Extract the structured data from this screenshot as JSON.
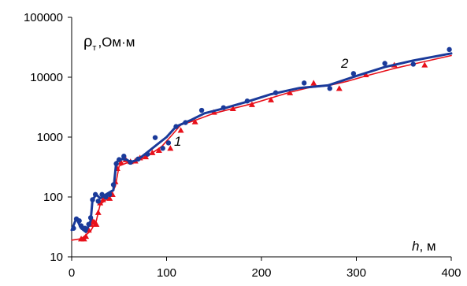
{
  "chart_data": {
    "type": "scatter",
    "xlabel": {
      "var": "h",
      "unit": ", м"
    },
    "ylabel": {
      "main": "ρ",
      "sub": "т",
      "unit": ",Ом·м"
    },
    "xlim": [
      0,
      400
    ],
    "ylim": [
      10,
      100000
    ],
    "yscale": "log",
    "grid": false,
    "x_ticks": [
      0,
      100,
      200,
      300,
      400
    ],
    "x_tick_labels": [
      "0",
      "100",
      "200",
      "300",
      "400"
    ],
    "y_ticks": [
      10,
      100,
      1000,
      10000,
      100000
    ],
    "y_tick_labels": [
      "10",
      "100",
      "1000",
      "10000",
      "100000"
    ],
    "series": [
      {
        "name": "1",
        "color": "#e8101a",
        "marker": "triangle",
        "points": [
          [
            10,
            20
          ],
          [
            13,
            20
          ],
          [
            15,
            22
          ],
          [
            18,
            28
          ],
          [
            20,
            35
          ],
          [
            22,
            40
          ],
          [
            24,
            38
          ],
          [
            26,
            35
          ],
          [
            28,
            55
          ],
          [
            30,
            80
          ],
          [
            33,
            90
          ],
          [
            36,
            100
          ],
          [
            40,
            95
          ],
          [
            43,
            110
          ],
          [
            46,
            180
          ],
          [
            48,
            300
          ],
          [
            52,
            380
          ],
          [
            57,
            420
          ],
          [
            62,
            390
          ],
          [
            67,
            400
          ],
          [
            72,
            450
          ],
          [
            78,
            470
          ],
          [
            85,
            550
          ],
          [
            92,
            600
          ],
          [
            104,
            650
          ],
          [
            115,
            1300
          ],
          [
            130,
            1800
          ],
          [
            150,
            2600
          ],
          [
            170,
            3000
          ],
          [
            190,
            3500
          ],
          [
            210,
            4200
          ],
          [
            230,
            5500
          ],
          [
            255,
            8000
          ],
          [
            282,
            6500
          ],
          [
            310,
            11000
          ],
          [
            340,
            16000
          ],
          [
            372,
            16000
          ]
        ],
        "curve": [
          [
            0,
            19
          ],
          [
            10,
            20
          ],
          [
            20,
            27
          ],
          [
            26,
            40
          ],
          [
            30,
            75
          ],
          [
            40,
            100
          ],
          [
            46,
            150
          ],
          [
            50,
            330
          ],
          [
            60,
            380
          ],
          [
            70,
            420
          ],
          [
            80,
            480
          ],
          [
            95,
            700
          ],
          [
            105,
            1050
          ],
          [
            115,
            1600
          ],
          [
            130,
            1900
          ],
          [
            150,
            2500
          ],
          [
            170,
            3000
          ],
          [
            190,
            3600
          ],
          [
            210,
            4500
          ],
          [
            230,
            5600
          ],
          [
            250,
            6700
          ],
          [
            270,
            7200
          ],
          [
            290,
            8500
          ],
          [
            310,
            10500
          ],
          [
            340,
            14000
          ],
          [
            370,
            18000
          ],
          [
            400,
            23000
          ]
        ]
      },
      {
        "name": "2",
        "color": "#1a3a9a",
        "marker": "circle",
        "points": [
          [
            2,
            30
          ],
          [
            5,
            43
          ],
          [
            8,
            40
          ],
          [
            10,
            33
          ],
          [
            14,
            30
          ],
          [
            18,
            35
          ],
          [
            20,
            45
          ],
          [
            22,
            90
          ],
          [
            25,
            110
          ],
          [
            28,
            85
          ],
          [
            32,
            110
          ],
          [
            36,
            100
          ],
          [
            40,
            110
          ],
          [
            44,
            160
          ],
          [
            47,
            360
          ],
          [
            50,
            420
          ],
          [
            55,
            480
          ],
          [
            62,
            380
          ],
          [
            70,
            430
          ],
          [
            80,
            520
          ],
          [
            88,
            980
          ],
          [
            96,
            650
          ],
          [
            102,
            800
          ],
          [
            110,
            1500
          ],
          [
            120,
            1750
          ],
          [
            137,
            2800
          ],
          [
            160,
            3100
          ],
          [
            185,
            4000
          ],
          [
            215,
            5500
          ],
          [
            245,
            8000
          ],
          [
            272,
            6500
          ],
          [
            297,
            11500
          ],
          [
            330,
            17000
          ],
          [
            360,
            16500
          ],
          [
            398,
            29000
          ]
        ],
        "curve": [
          [
            0,
            28
          ],
          [
            5,
            44
          ],
          [
            10,
            30
          ],
          [
            15,
            26
          ],
          [
            20,
            40
          ],
          [
            22,
            90
          ],
          [
            26,
            110
          ],
          [
            30,
            95
          ],
          [
            36,
            110
          ],
          [
            40,
            120
          ],
          [
            44,
            130
          ],
          [
            47,
            380
          ],
          [
            52,
            430
          ],
          [
            58,
            420
          ],
          [
            62,
            380
          ],
          [
            70,
            420
          ],
          [
            80,
            560
          ],
          [
            90,
            750
          ],
          [
            100,
            1000
          ],
          [
            110,
            1500
          ],
          [
            125,
            1900
          ],
          [
            140,
            2500
          ],
          [
            160,
            3000
          ],
          [
            185,
            3900
          ],
          [
            210,
            5200
          ],
          [
            240,
            6600
          ],
          [
            270,
            7300
          ],
          [
            300,
            10500
          ],
          [
            330,
            14800
          ],
          [
            360,
            19000
          ],
          [
            400,
            25000
          ]
        ]
      }
    ]
  }
}
